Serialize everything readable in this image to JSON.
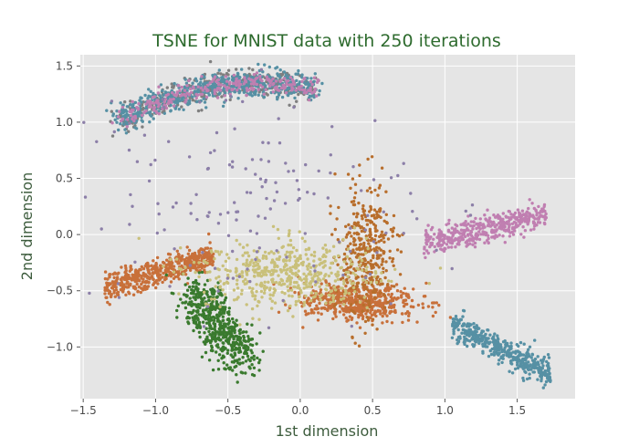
{
  "chart_data": {
    "type": "scatter",
    "title": "TSNE for MNIST data with 250 iterations",
    "xlabel": "1st dimension",
    "ylabel": "2nd dimension",
    "xlim": [
      -1.52,
      1.9
    ],
    "ylim": [
      -1.46,
      1.6
    ],
    "xticks": [
      -1.5,
      -1.0,
      -0.5,
      0.0,
      0.5,
      1.0,
      1.5
    ],
    "xtick_labels": [
      "−1.5",
      "−1.0",
      "−0.5",
      "0.0",
      "0.5",
      "1.0",
      "1.5"
    ],
    "yticks": [
      -1.0,
      -0.5,
      0.0,
      0.5,
      1.0,
      1.5
    ],
    "ytick_labels": [
      "−1.0",
      "−0.5",
      "0.0",
      "0.5",
      "1.0",
      "1.5"
    ],
    "grid": true,
    "legend": false,
    "colors": {
      "background": "#e5e5e5",
      "grid": "#ffffff",
      "gray": "#7f7f7f",
      "steel_blue": "#5690a4",
      "pink": "#c07fb1",
      "orange": "#c8703a",
      "dark_orange": "#b86e2c",
      "green": "#3a7a2e",
      "khaki": "#c9c07a",
      "purple_gray": "#8c7fa8"
    },
    "clusters": [
      {
        "color": "#7f7f7f",
        "count": 380,
        "center": [
          -0.6,
          1.25
        ],
        "spread": [
          0.35,
          0.12
        ],
        "arc": "top"
      },
      {
        "color": "#5690a4",
        "count": 620,
        "center": [
          -0.35,
          1.2
        ],
        "spread": [
          0.4,
          0.12
        ],
        "arc": "top"
      },
      {
        "color": "#c07fb1",
        "count": 260,
        "center": [
          -0.25,
          1.3
        ],
        "spread": [
          0.35,
          0.08
        ],
        "arc": "top"
      },
      {
        "color": "#c07fb1",
        "count": 420,
        "center": [
          1.35,
          0.08
        ],
        "spread": [
          0.3,
          0.06
        ],
        "arc": "diag_up"
      },
      {
        "color": "#5690a4",
        "count": 420,
        "center": [
          1.4,
          -1.1
        ],
        "spread": [
          0.25,
          0.06
        ],
        "arc": "diag_down"
      },
      {
        "color": "#c8703a",
        "count": 500,
        "center": [
          -1.0,
          -0.35
        ],
        "spread": [
          0.3,
          0.06
        ],
        "arc": "left_band"
      },
      {
        "color": "#c8703a",
        "count": 520,
        "center": [
          0.4,
          -0.6
        ],
        "spread": [
          0.2,
          0.08
        ],
        "arc": "blob"
      },
      {
        "color": "#b86e2c",
        "count": 380,
        "center": [
          0.45,
          -0.15
        ],
        "spread": [
          0.1,
          0.3
        ],
        "arc": "vert"
      },
      {
        "color": "#3a7a2e",
        "count": 560,
        "center": [
          -0.6,
          -0.8
        ],
        "spread": [
          0.15,
          0.25
        ],
        "arc": "green_drop"
      },
      {
        "color": "#c9c07a",
        "count": 520,
        "center": [
          -0.1,
          -0.35
        ],
        "spread": [
          0.3,
          0.15
        ],
        "arc": "blob"
      },
      {
        "color": "#8c7fa8",
        "count": 160,
        "center": [
          -0.3,
          0.3
        ],
        "spread": [
          0.6,
          0.5
        ],
        "arc": "scatter"
      }
    ]
  }
}
